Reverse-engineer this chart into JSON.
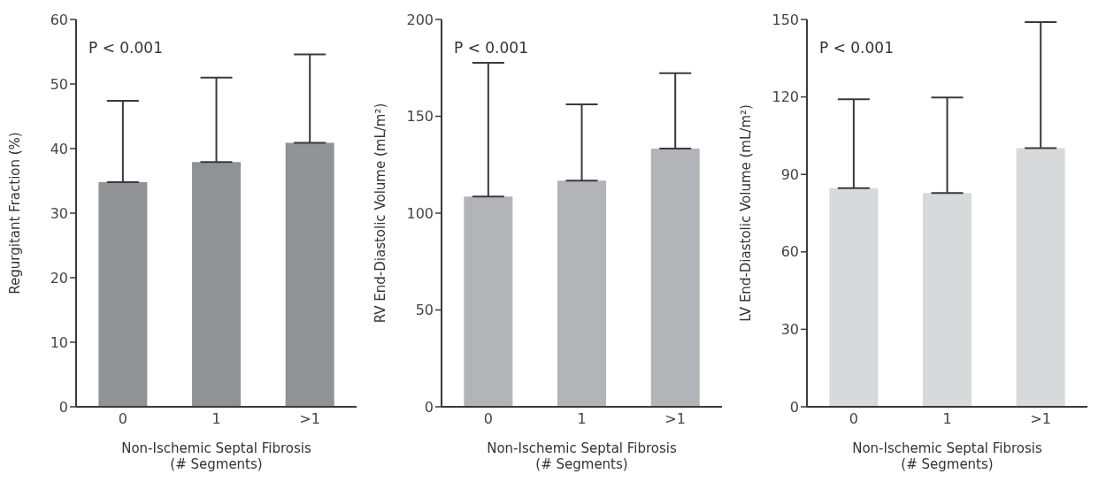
{
  "chart_data": [
    {
      "type": "bar",
      "categories": [
        "0",
        "1",
        ">1"
      ],
      "values": [
        34.8,
        37.9,
        40.9
      ],
      "errors": [
        [
          34.8,
          47.4
        ],
        [
          37.9,
          51.0
        ],
        [
          40.9,
          54.6
        ]
      ],
      "color": "#919295",
      "ylim": [
        0,
        60
      ],
      "yticks": [
        0,
        10,
        20,
        30,
        40,
        50,
        60
      ],
      "ylabel": "Regurgitant Fraction (%)",
      "xlabel": "Non-Ischemic Septal Fibrosis\n(# Segments)",
      "annotations": [
        "P < 0.001"
      ],
      "grid": false,
      "legend": false
    },
    {
      "type": "bar",
      "categories": [
        "0",
        "1",
        ">1"
      ],
      "values": [
        108.6,
        116.8,
        133.3
      ],
      "errors": [
        [
          108.6,
          177.6
        ],
        [
          116.8,
          156.2
        ],
        [
          133.3,
          172.3
        ]
      ],
      "color": "#b3b4b8",
      "ylim": [
        0,
        200
      ],
      "yticks": [
        0,
        50,
        100,
        150,
        200
      ],
      "ylabel": "RV End-Diastolic Volume (mL/m²)",
      "xlabel": "Non-Ischemic Septal Fibrosis\n(# Segments)",
      "annotations": [
        "P < 0.001"
      ],
      "grid": false,
      "legend": false
    },
    {
      "type": "bar",
      "categories": [
        "0",
        "1",
        ">1"
      ],
      "values": [
        84.7,
        82.8,
        100.2
      ],
      "errors": [
        [
          84.7,
          119.1
        ],
        [
          82.8,
          119.8
        ],
        [
          100.2,
          149.0
        ]
      ],
      "color": "#d8d9db",
      "ylim": [
        0,
        150
      ],
      "yticks": [
        0,
        30,
        60,
        90,
        120,
        150
      ],
      "ylabel": "LV End-Diastolic Volume (mL/m²)",
      "xlabel": "Non-Ischemic Septal Fibrosis\n(# Segments)",
      "annotations": [
        "P < 0.001"
      ],
      "grid": false,
      "legend": false
    }
  ]
}
